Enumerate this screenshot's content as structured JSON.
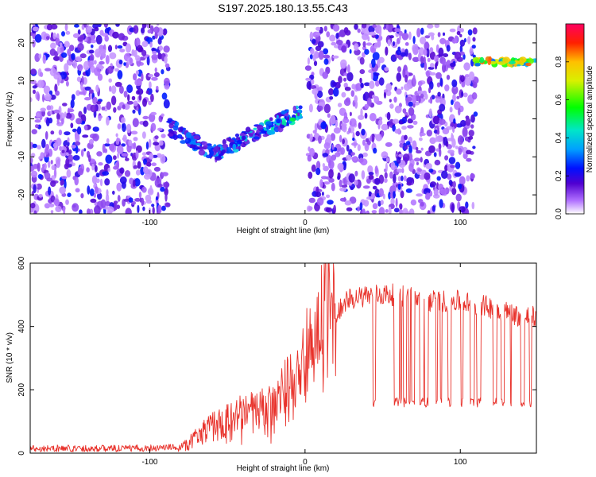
{
  "title": "S197.2025.180.13.55.C43",
  "chart_data": [
    {
      "type": "heatmap",
      "xlabel": "Height of straight line (km)",
      "ylabel": "Frequency (Hz)",
      "xlim": [
        -177,
        149
      ],
      "ylim": [
        -25,
        25
      ],
      "xticks": [
        -100,
        0,
        100
      ],
      "yticks": [
        -20,
        -10,
        0,
        10,
        20
      ],
      "colorbar": {
        "label": "Normalized spectral amplitude",
        "ticks": [
          0.0,
          0.2,
          0.4,
          0.6,
          0.8
        ],
        "range": [
          0,
          1
        ]
      },
      "features": [
        {
          "segment": "left noise band",
          "x": [
            -177,
            -88
          ],
          "freq": [
            -25,
            25
          ],
          "amplitude": [
            0.05,
            0.25
          ]
        },
        {
          "segment": "dispersive signal track",
          "x": [
            -88,
            -2
          ],
          "freq_start": -2,
          "freq_min": -9,
          "freq_end": 2,
          "amplitude_peak": 0.55
        },
        {
          "segment": "middle noise band",
          "x": [
            2,
            110
          ],
          "freq": [
            -25,
            25
          ],
          "amplitude": [
            0.05,
            0.25
          ]
        },
        {
          "segment": "narrow line near 15 Hz",
          "x": [
            110,
            149
          ],
          "freq": 15,
          "amplitude_peak": 0.9
        }
      ]
    },
    {
      "type": "line",
      "xlabel": "Height of straight line (km)",
      "ylabel": "SNR (10 * v/v)",
      "xlim": [
        -177,
        149
      ],
      "ylim": [
        0,
        600
      ],
      "xticks": [
        -100,
        0,
        100
      ],
      "yticks": [
        0,
        200,
        400,
        600
      ],
      "color": "#e8312a",
      "profile": {
        "x": [
          -177,
          -110,
          -80,
          -60,
          -40,
          -20,
          -10,
          0,
          10,
          12,
          20,
          25,
          40,
          60,
          80,
          100,
          120,
          140,
          149
        ],
        "y": [
          15,
          15,
          20,
          90,
          130,
          150,
          230,
          330,
          380,
          600,
          430,
          480,
          500,
          500,
          480,
          480,
          460,
          430,
          430
        ]
      },
      "dropouts": {
        "x_range": [
          36,
          146
        ],
        "low_level": 160
      }
    }
  ]
}
